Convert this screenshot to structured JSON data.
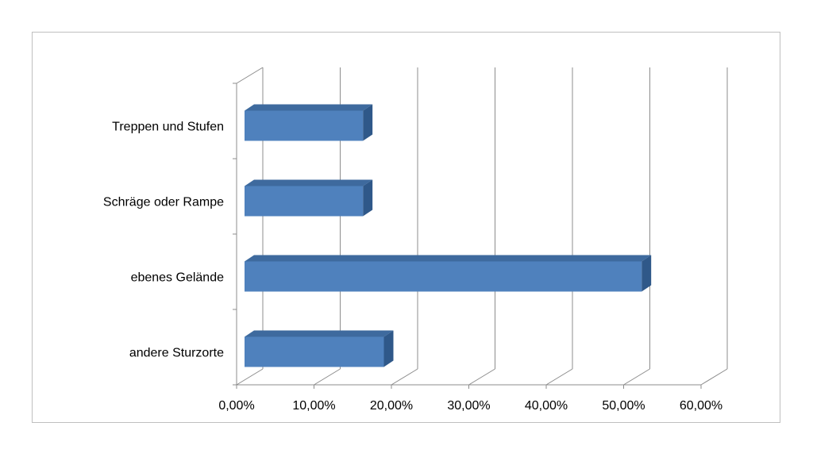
{
  "chart_data": {
    "type": "bar",
    "orientation": "horizontal",
    "style": "3d",
    "categories": [
      "Treppen und Stufen",
      "Schräge oder Rampe",
      "ebenes Gelände",
      "andere Sturzorte"
    ],
    "values": [
      15.3,
      15.3,
      51.3,
      18.0
    ],
    "xlim": [
      0,
      60
    ],
    "x_ticks": [
      "0,00%",
      "10,00%",
      "20,00%",
      "30,00%",
      "40,00%",
      "50,00%",
      "60,00%"
    ],
    "grid": "vertical",
    "legend": "none",
    "bar_color": "#4F81BD",
    "bar_top_color": "#3E6A9E",
    "bar_side_color": "#2F5889",
    "title": "",
    "xlabel": "",
    "ylabel": ""
  }
}
